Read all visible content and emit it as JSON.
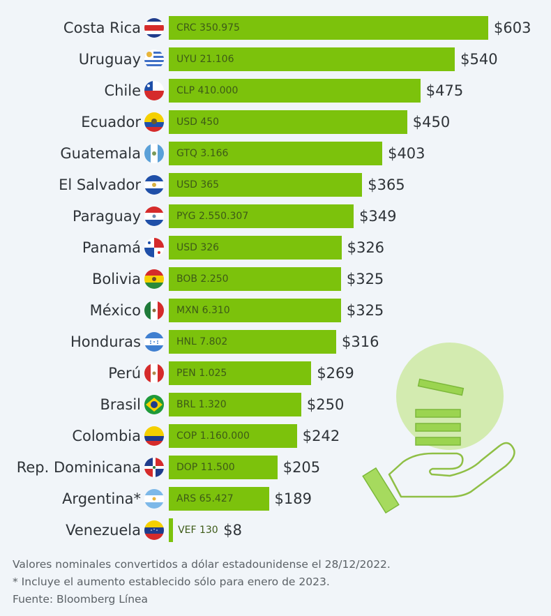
{
  "chart_data": {
    "type": "bar",
    "orientation": "horizontal",
    "title": "",
    "xlabel": "",
    "ylabel": "",
    "xlim": [
      0,
      603
    ],
    "grid": false,
    "bar_color": "#7cc20c",
    "categories": [
      "Costa Rica",
      "Uruguay",
      "Chile",
      "Ecuador",
      "Guatemala",
      "El Salvador",
      "Paraguay",
      "Panamá",
      "Bolivia",
      "México",
      "Honduras",
      "Perú",
      "Brasil",
      "Colombia",
      "Rep. Dominicana",
      "Argentina*",
      "Venezuela"
    ],
    "values": [
      603,
      540,
      475,
      450,
      403,
      365,
      349,
      326,
      325,
      325,
      316,
      269,
      250,
      242,
      205,
      189,
      8
    ],
    "value_labels": [
      "$603",
      "$540",
      "$475",
      "$450",
      "$403",
      "$365",
      "$349",
      "$326",
      "$325",
      "$325",
      "$316",
      "$269",
      "$250",
      "$242",
      "$205",
      "$189",
      "$8"
    ],
    "local_currency_labels": [
      "CRC 350.975",
      "UYU 21.106",
      "CLP 410.000",
      "USD 450",
      "GTQ 3.166",
      "USD 365",
      "PYG 2.550.307",
      "USD 326",
      "BOB 2.250",
      "MXN 6.310",
      "HNL 7.802",
      "PEN 1.025",
      "BRL 1.320",
      "COP 1.160.000",
      "DOP 11.500",
      "ARS 65.427",
      "VEF 130"
    ],
    "flags": [
      "costa-rica",
      "uruguay",
      "chile",
      "ecuador",
      "guatemala",
      "el-salvador",
      "paraguay",
      "panama",
      "bolivia",
      "mexico",
      "honduras",
      "peru",
      "brasil",
      "colombia",
      "rep-dominicana",
      "argentina",
      "venezuela"
    ]
  },
  "footnotes": {
    "note1": "Valores nominales convertidos a dólar estadounidense el 28/12/2022.",
    "note2": "* Incluye el aumento establecido sólo para enero de 2023.",
    "source": "Fuente: Bloomberg Línea"
  },
  "decoration": {
    "icon": "hand-with-coins-icon",
    "color": "#8fd13a"
  }
}
